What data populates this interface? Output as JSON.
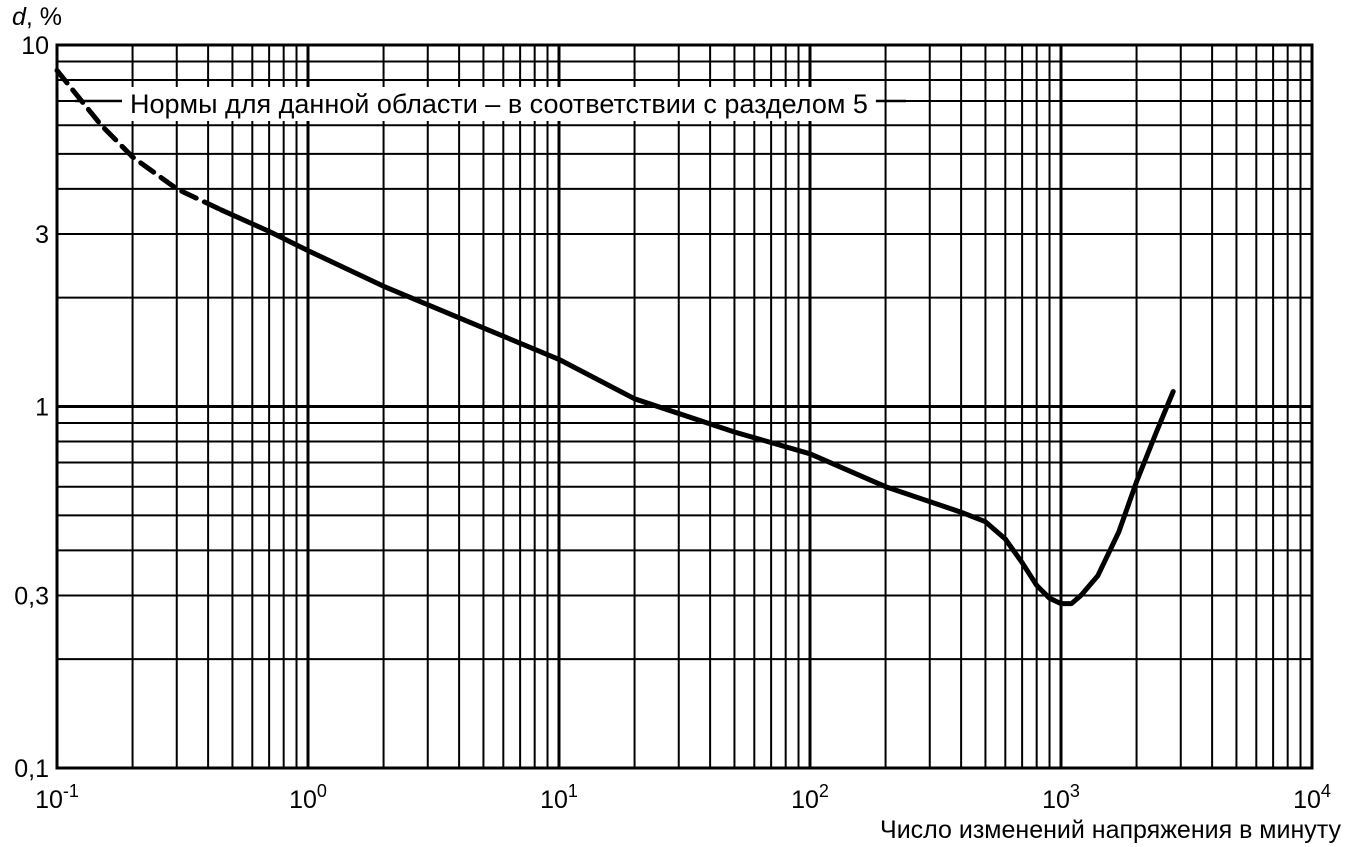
{
  "chart_data": {
    "type": "line",
    "title": "",
    "xlabel": "Число изменений напряжения в минуту",
    "ylabel": "d, %",
    "xscale": "log",
    "yscale": "log",
    "xlim": [
      0.1,
      10000
    ],
    "ylim": [
      0.1,
      10
    ],
    "grid": true,
    "x_ticks": [
      {
        "value": 0.1,
        "base": "10",
        "exp": "-1"
      },
      {
        "value": 1,
        "base": "10",
        "exp": "0"
      },
      {
        "value": 10,
        "base": "10",
        "exp": "1"
      },
      {
        "value": 100,
        "base": "10",
        "exp": "2"
      },
      {
        "value": 1000,
        "base": "10",
        "exp": "3"
      },
      {
        "value": 10000,
        "base": "10",
        "exp": "4"
      }
    ],
    "y_ticks": [
      {
        "value": 10,
        "label": "10"
      },
      {
        "value": 3,
        "label": "3"
      },
      {
        "value": 1,
        "label": "1"
      },
      {
        "value": 0.3,
        "label": "0,3"
      },
      {
        "value": 0.1,
        "label": "0,1"
      }
    ],
    "annotation": "Нормы для данной области – в соответствии с разделом 5",
    "series": [
      {
        "style": "dashed",
        "x": [
          0.1,
          0.15,
          0.2,
          0.3,
          0.45
        ],
        "y": [
          8.5,
          6.0,
          4.9,
          4.0,
          3.5
        ]
      },
      {
        "style": "solid",
        "x": [
          0.45,
          0.7,
          1,
          2,
          5,
          10,
          20,
          50,
          100,
          200,
          400,
          500,
          600,
          700,
          800,
          900,
          1000,
          1100,
          1200,
          1400,
          1700,
          2000,
          2400,
          2800
        ],
        "y": [
          3.5,
          3.05,
          2.7,
          2.15,
          1.65,
          1.35,
          1.05,
          0.85,
          0.74,
          0.6,
          0.51,
          0.48,
          0.43,
          0.37,
          0.32,
          0.295,
          0.285,
          0.285,
          0.3,
          0.34,
          0.45,
          0.62,
          0.85,
          1.1
        ]
      }
    ]
  }
}
